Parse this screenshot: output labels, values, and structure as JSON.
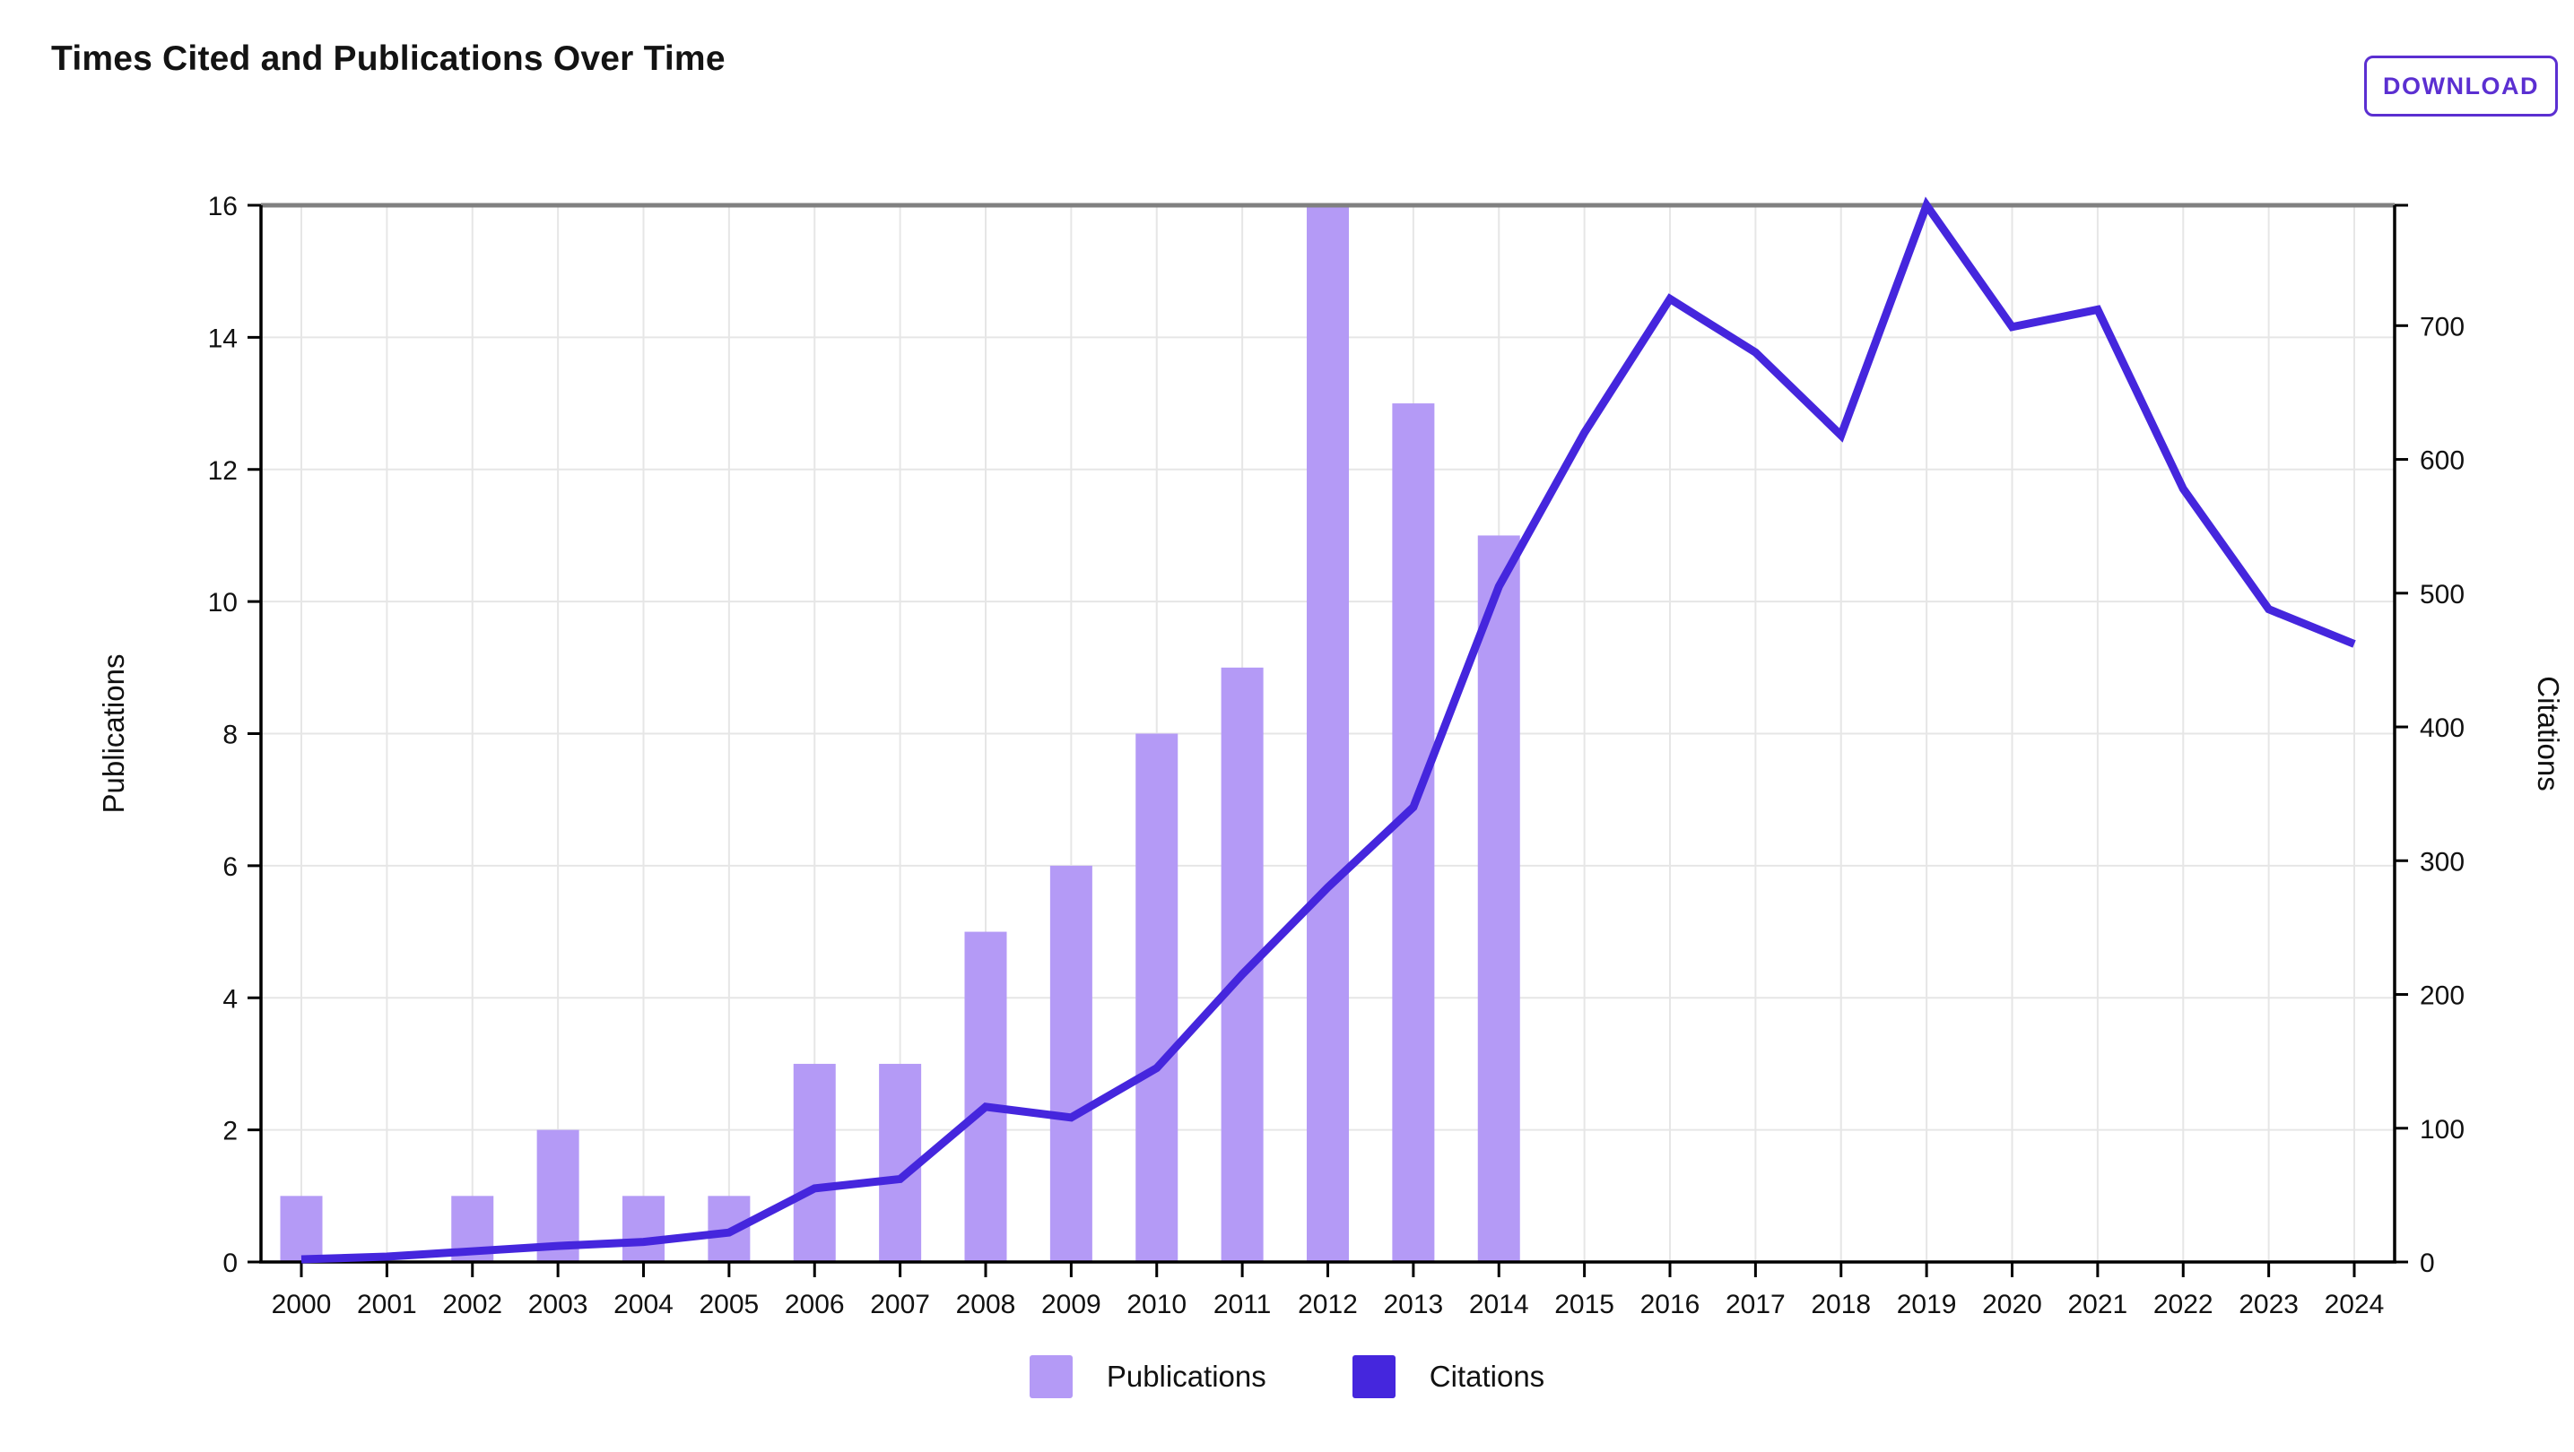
{
  "header": {
    "title": "Times Cited and Publications Over Time",
    "download_label": "DOWNLOAD",
    "accent_color": "#5b2fd1"
  },
  "chart_data": {
    "type": "bar+line combo, dual axis",
    "title": "Times Cited and Publications Over Time",
    "categories": [
      2000,
      2001,
      2002,
      2003,
      2004,
      2005,
      2006,
      2007,
      2008,
      2009,
      2010,
      2011,
      2012,
      2013,
      2014,
      2015,
      2016,
      2017,
      2018,
      2019,
      2020,
      2021,
      2022,
      2023,
      2024
    ],
    "series": [
      {
        "name": "Publications",
        "type": "bar",
        "axis": "left",
        "color": "#b49af6",
        "values": [
          1,
          0,
          1,
          2,
          1,
          1,
          3,
          3,
          5,
          6,
          8,
          9,
          16,
          13,
          11,
          0,
          0,
          0,
          0,
          0,
          0,
          0,
          0,
          0,
          0
        ]
      },
      {
        "name": "Citations",
        "type": "line",
        "axis": "right",
        "color": "#4526dd",
        "values": [
          2,
          4,
          8,
          12,
          15,
          22,
          55,
          62,
          116,
          108,
          145,
          215,
          280,
          340,
          505,
          620,
          720,
          680,
          618,
          790,
          699,
          712,
          578,
          488,
          462
        ]
      }
    ],
    "xlabel": "",
    "ylabel_left": "Publications",
    "ylabel_right": "Citations",
    "ylim_left": [
      0,
      16
    ],
    "ylim_right": [
      0,
      790
    ],
    "yticks_left": [
      0,
      2,
      4,
      6,
      8,
      10,
      12,
      14,
      16
    ],
    "yticks_right": [
      0,
      100,
      200,
      300,
      400,
      500,
      600,
      700
    ],
    "grid": true,
    "grid_color": "#e6e6e6",
    "plot_border_top_color": "#808080",
    "axis_color": "#000000",
    "legend_position": "bottom"
  }
}
